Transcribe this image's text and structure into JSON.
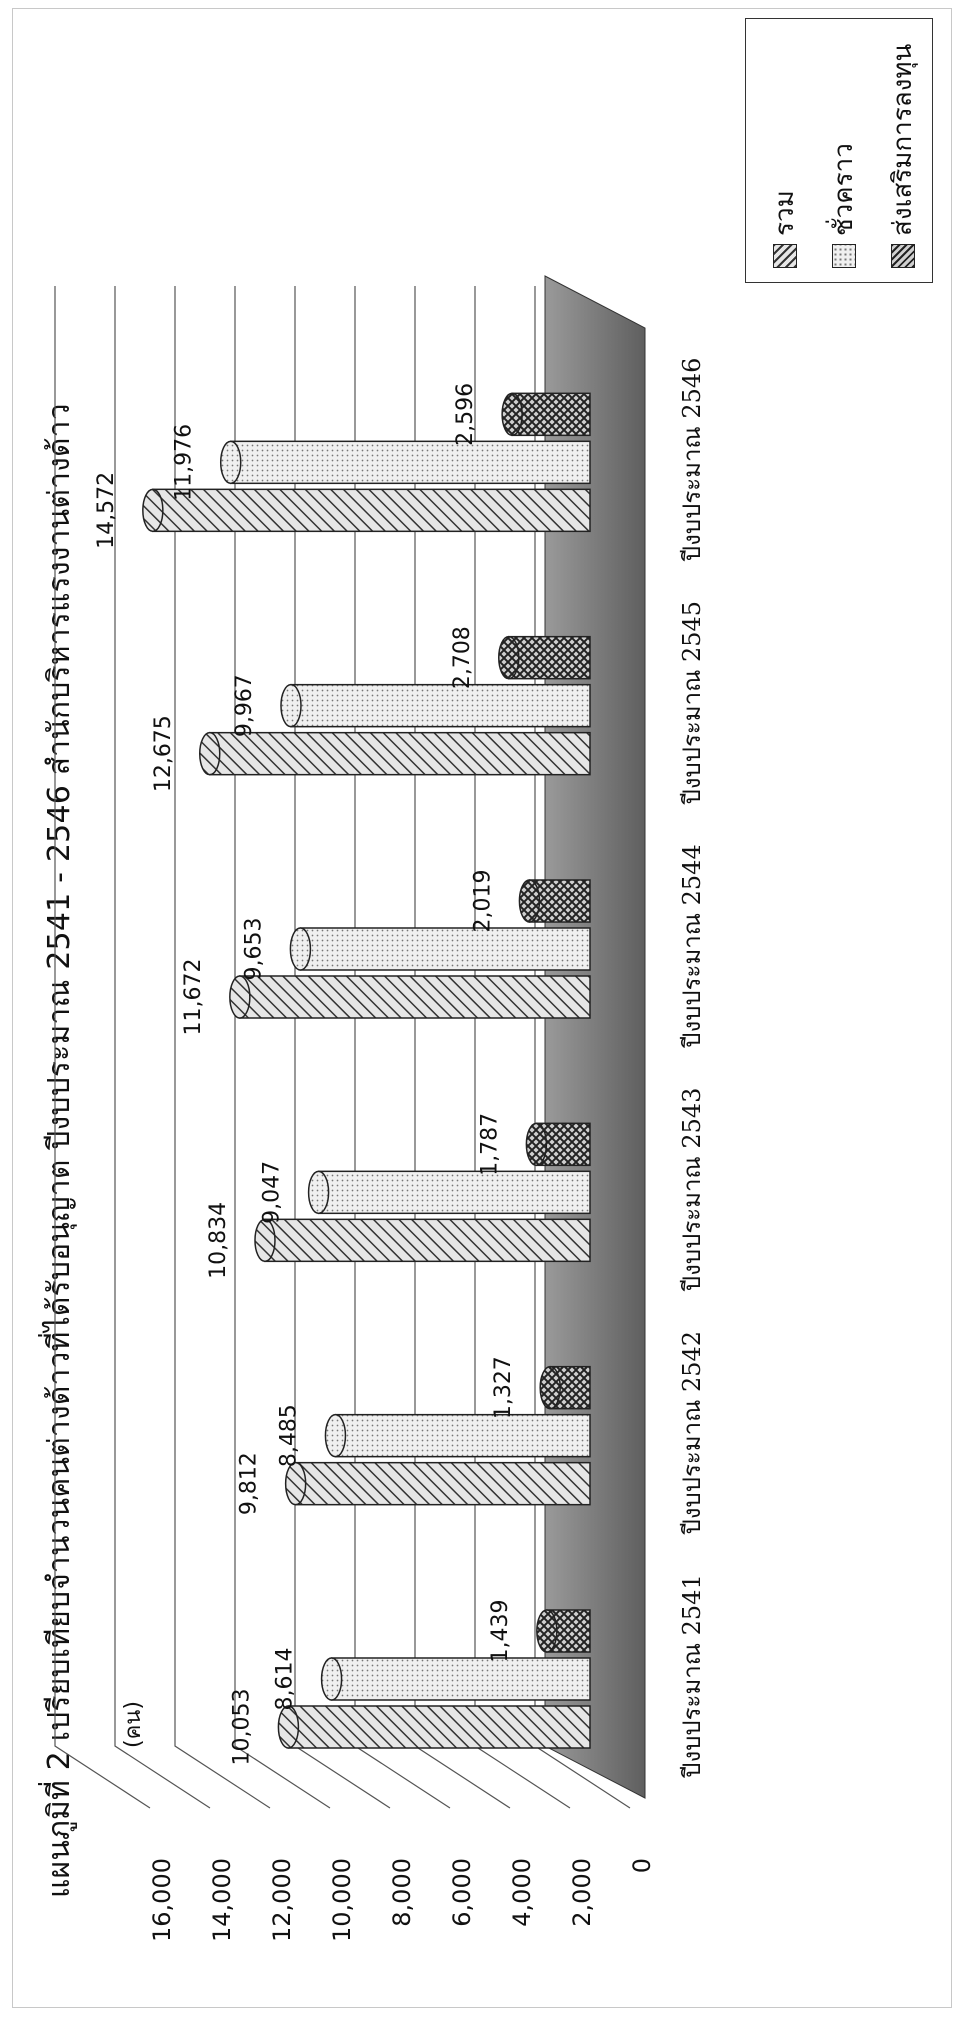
{
  "chart_data": {
    "type": "bar",
    "title": "แผนภูมิที่ 2 เปรียบเทียบจำนวนคนต่างด้าวที่ได้รับอนุญาต ปีงบประมาณ 2541 - 2546  สำนักบริหารแรงงานต่างด้าว",
    "unit_label": "(คน)",
    "categories": [
      "ปีงบประมาณ 2541",
      "ปีงบประมาณ 2542",
      "ปีงบประมาณ 2543",
      "ปีงบประมาณ 2544",
      "ปีงบประมาณ 2545",
      "ปีงบประมาณ 2546"
    ],
    "series": [
      {
        "name": "รวม",
        "values": [
          10053,
          9812,
          10834,
          11672,
          12675,
          14572
        ],
        "value_labels": [
          "10,053",
          "9,812",
          "10,834",
          "11,672",
          "12,675",
          "14,572"
        ]
      },
      {
        "name": "ชั่วคราว",
        "values": [
          8614,
          8485,
          9047,
          9653,
          9967,
          11976
        ],
        "value_labels": [
          "8,614",
          "8,485",
          "9,047",
          "9,653",
          "9,967",
          "11,976"
        ]
      },
      {
        "name": "ส่งเสริมการลงทุน",
        "values": [
          1439,
          1327,
          1787,
          2019,
          2708,
          2596
        ],
        "value_labels": [
          "1,439",
          "1,327",
          "1,787",
          "2,019",
          "2,708",
          "2,596"
        ]
      }
    ],
    "ylim": [
      0,
      16000
    ],
    "yticks": [
      0,
      2000,
      4000,
      6000,
      8000,
      10000,
      12000,
      14000,
      16000
    ],
    "ytick_labels": [
      "0",
      "2,000",
      "4,000",
      "6,000",
      "8,000",
      "10,000",
      "12,000",
      "14,000",
      "16,000"
    ],
    "grid": true,
    "legend_position": "top-right",
    "orientation": "page rotated 90 degrees counter-clockwise"
  }
}
